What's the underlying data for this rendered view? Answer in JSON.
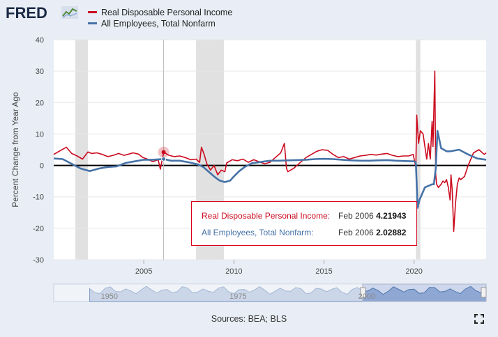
{
  "header": {
    "logo": "FRED",
    "logo_icon": "chart-line-icon"
  },
  "colors": {
    "series1": "#cc0a1e",
    "series2": "#4572a7",
    "recession": "#e1e1e1",
    "plot_bg": "#ffffff",
    "navigator_fill": "#9db3d8"
  },
  "tooltip": {
    "row1_label": "Real Disposable Personal Income:",
    "row1_date": "Feb 2006",
    "row1_value": "4.21943",
    "row2_label": "All Employees, Total Nonfarm:",
    "row2_date": "Feb 2006",
    "row2_value": "2.02882"
  },
  "navigator": {
    "labels": [
      "1950",
      "1975",
      "2000"
    ]
  },
  "footer": {
    "sources": "Sources: BEA; BLS",
    "fullscreen_icon": "fullscreen-icon"
  },
  "chart_data": {
    "type": "line",
    "title": "",
    "xlabel": "",
    "ylabel": "Percent Change from Year Ago",
    "xlim": [
      2000.0,
      2024.0
    ],
    "ylim": [
      -30,
      40
    ],
    "x_ticks": [
      "2005",
      "2010",
      "2015",
      "2020"
    ],
    "y_ticks": [
      "40",
      "30",
      "20",
      "10",
      "0",
      "-10",
      "-20",
      "-30"
    ],
    "legend_position": "top-left",
    "recessions": [
      [
        2001.2,
        2001.9
      ],
      [
        2007.9,
        2009.45
      ],
      [
        2020.1,
        2020.35
      ]
    ],
    "crosshair_x": 2006.1,
    "series": [
      {
        "name": "Real Disposable Personal Income",
        "color": "#cc0a1e",
        "x": [
          2000.0,
          2000.3,
          2000.7,
          2001.0,
          2001.3,
          2001.6,
          2001.9,
          2002.1,
          2002.4,
          2002.7,
          2003.0,
          2003.3,
          2003.6,
          2003.9,
          2004.1,
          2004.4,
          2004.7,
          2004.95,
          2005.2,
          2005.5,
          2005.8,
          2005.92,
          2006.1,
          2006.4,
          2006.7,
          2007.0,
          2007.3,
          2007.6,
          2007.9,
          2008.1,
          2008.2,
          2008.35,
          2008.5,
          2008.7,
          2008.9,
          2009.1,
          2009.3,
          2009.5,
          2009.6,
          2009.9,
          2010.2,
          2010.5,
          2010.8,
          2011.1,
          2011.4,
          2011.7,
          2012.0,
          2012.3,
          2012.6,
          2012.8,
          2012.92,
          2013.0,
          2013.3,
          2013.6,
          2013.8,
          2014.0,
          2014.3,
          2014.6,
          2014.9,
          2015.2,
          2015.5,
          2015.8,
          2016.1,
          2016.4,
          2016.7,
          2017.0,
          2017.3,
          2017.6,
          2017.9,
          2018.2,
          2018.5,
          2018.8,
          2019.1,
          2019.4,
          2019.7,
          2019.95,
          2020.1,
          2020.15,
          2020.25,
          2020.35,
          2020.5,
          2020.6,
          2020.7,
          2020.8,
          2020.9,
          2021.0,
          2021.05,
          2021.15,
          2021.2,
          2021.25,
          2021.35,
          2021.5,
          2021.6,
          2021.7,
          2021.8,
          2021.9,
          2022.0,
          2022.05,
          2022.12,
          2022.2,
          2022.3,
          2022.4,
          2022.5,
          2022.6,
          2022.8,
          2023.0,
          2023.3,
          2023.6,
          2023.9,
          2024.0
        ],
        "values": [
          3.5,
          4.5,
          5.8,
          3.8,
          3.0,
          2.0,
          4.3,
          3.8,
          4.0,
          3.5,
          2.8,
          3.2,
          3.8,
          3.2,
          3.5,
          4.0,
          3.6,
          2.5,
          2.0,
          1.2,
          1.8,
          -1.2,
          4.2,
          3.2,
          2.8,
          3.0,
          2.5,
          1.8,
          2.0,
          1.0,
          5.8,
          3.5,
          0.5,
          -1.5,
          0.0,
          -3.0,
          -1.5,
          -2.0,
          0.8,
          1.8,
          1.5,
          2.0,
          1.0,
          1.8,
          1.2,
          0.5,
          1.0,
          2.5,
          4.0,
          7.0,
          -1.0,
          -2.0,
          -1.0,
          0.5,
          1.5,
          2.5,
          3.5,
          4.5,
          5.0,
          4.8,
          3.5,
          2.5,
          2.8,
          2.0,
          2.5,
          3.0,
          3.2,
          3.5,
          3.3,
          3.6,
          3.8,
          3.2,
          2.8,
          3.0,
          3.0,
          3.5,
          -0.5,
          16.0,
          7.0,
          11.0,
          10.0,
          6.0,
          2.0,
          7.0,
          2.0,
          14.0,
          6.0,
          30.0,
          -3.0,
          -6.0,
          -7.0,
          -6.0,
          -5.0,
          -5.5,
          -4.5,
          -7.0,
          -11.0,
          -3.0,
          -8.0,
          -21.0,
          -12.0,
          -6.0,
          -4.0,
          -4.5,
          -3.5,
          0.0,
          4.0,
          5.0,
          3.5,
          4.0
        ]
      },
      {
        "name": "All Employees, Total Nonfarm",
        "color": "#4572a7",
        "x": [
          2000.0,
          2000.5,
          2001.0,
          2001.5,
          2002.0,
          2002.5,
          2003.0,
          2003.5,
          2004.0,
          2004.5,
          2005.0,
          2005.5,
          2006.0,
          2006.1,
          2006.5,
          2007.0,
          2007.5,
          2008.0,
          2008.3,
          2008.6,
          2008.9,
          2009.2,
          2009.5,
          2009.8,
          2010.0,
          2010.3,
          2010.6,
          2011.0,
          2011.5,
          2012.0,
          2012.5,
          2013.0,
          2013.5,
          2014.0,
          2014.5,
          2015.0,
          2015.5,
          2016.0,
          2016.5,
          2017.0,
          2017.5,
          2018.0,
          2018.5,
          2019.0,
          2019.5,
          2020.0,
          2020.1,
          2020.2,
          2020.3,
          2020.45,
          2020.6,
          2020.8,
          2021.0,
          2021.1,
          2021.2,
          2021.3,
          2021.5,
          2021.8,
          2022.0,
          2022.5,
          2023.0,
          2023.5,
          2024.0
        ],
        "values": [
          2.2,
          2.0,
          0.5,
          -1.0,
          -1.8,
          -1.0,
          -0.5,
          -0.3,
          0.8,
          1.3,
          1.8,
          1.8,
          2.0,
          2.03,
          1.5,
          1.5,
          1.0,
          0.3,
          -0.5,
          -2.0,
          -3.5,
          -4.8,
          -5.3,
          -4.8,
          -3.5,
          -1.8,
          -0.5,
          0.7,
          1.1,
          1.5,
          1.5,
          1.6,
          1.7,
          1.8,
          2.0,
          2.1,
          2.0,
          1.8,
          1.6,
          1.5,
          1.5,
          1.6,
          1.7,
          1.5,
          1.4,
          1.3,
          1.0,
          -13.5,
          -11.0,
          -9.0,
          -7.0,
          -6.5,
          -6.0,
          -6.0,
          -1.0,
          11.0,
          5.5,
          4.5,
          4.5,
          5.0,
          3.5,
          2.2,
          1.8
        ]
      }
    ]
  }
}
